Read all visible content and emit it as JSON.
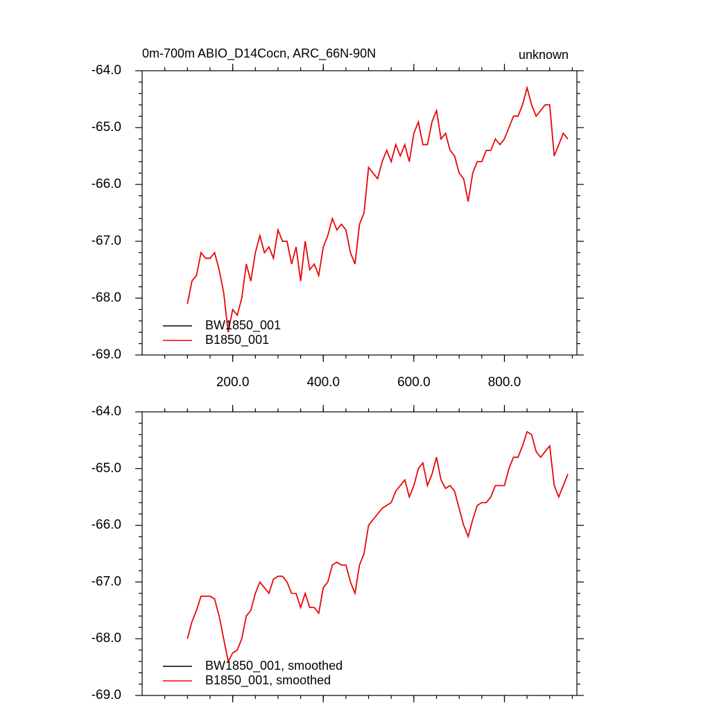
{
  "chart_data": [
    {
      "type": "line",
      "title": "0m-700m ABIO_D14Cocn, ARC_66N-90N",
      "right_title": "unknown",
      "x": [
        100,
        110,
        120,
        130,
        140,
        150,
        160,
        170,
        180,
        190,
        200,
        210,
        220,
        230,
        240,
        250,
        260,
        270,
        280,
        290,
        300,
        310,
        320,
        330,
        340,
        350,
        360,
        370,
        380,
        390,
        400,
        410,
        420,
        430,
        440,
        450,
        460,
        470,
        480,
        490,
        500,
        510,
        520,
        530,
        540,
        550,
        560,
        570,
        580,
        590,
        600,
        610,
        620,
        630,
        640,
        650,
        660,
        670,
        680,
        690,
        700,
        710,
        720,
        730,
        740,
        750,
        760,
        770,
        780,
        790,
        800,
        810,
        820,
        830,
        840,
        850,
        860,
        870,
        880,
        890,
        900,
        910,
        920,
        930,
        940
      ],
      "series": [
        {
          "name": "BW1850_001",
          "color": "#000000",
          "values": [
            -68.1,
            -67.7,
            -67.6,
            -67.2,
            -67.3,
            -67.3,
            -67.2,
            -67.5,
            -67.9,
            -68.6,
            -68.2,
            -68.3,
            -68.0,
            -67.4,
            -67.7,
            -67.2,
            -66.9,
            -67.2,
            -67.1,
            -67.3,
            -66.8,
            -67.0,
            -67.0,
            -67.4,
            -67.1,
            -67.7,
            -67.0,
            -67.5,
            -67.4,
            -67.6,
            -67.1,
            -66.9,
            -66.6,
            -66.8,
            -66.7,
            -66.8,
            -67.2,
            -67.4,
            -66.7,
            -66.5,
            -65.7,
            -65.8,
            -65.9,
            -65.6,
            -65.4,
            -65.6,
            -65.3,
            -65.5,
            -65.3,
            -65.6,
            -65.1,
            -64.9,
            -65.3,
            -65.3,
            -64.9,
            -64.7,
            -65.2,
            -65.1,
            -65.4,
            -65.5,
            -65.8,
            -65.9,
            -66.3,
            -65.8,
            -65.6,
            -65.6,
            -65.4,
            -65.4,
            -65.2,
            -65.3,
            -65.2,
            -65.0,
            -64.8,
            -64.8,
            -64.6,
            -64.3,
            -64.6,
            -64.8,
            -64.7,
            -64.6,
            -64.6,
            -65.5,
            -65.3,
            -65.1,
            -65.2
          ]
        },
        {
          "name": "B1850_001",
          "color": "#ff0000",
          "values": [
            -68.1,
            -67.7,
            -67.6,
            -67.2,
            -67.3,
            -67.3,
            -67.2,
            -67.5,
            -67.9,
            -68.6,
            -68.2,
            -68.3,
            -68.0,
            -67.4,
            -67.7,
            -67.2,
            -66.9,
            -67.2,
            -67.1,
            -67.3,
            -66.8,
            -67.0,
            -67.0,
            -67.4,
            -67.1,
            -67.7,
            -67.0,
            -67.5,
            -67.4,
            -67.6,
            -67.1,
            -66.9,
            -66.6,
            -66.8,
            -66.7,
            -66.8,
            -67.2,
            -67.4,
            -66.7,
            -66.5,
            -65.7,
            -65.8,
            -65.9,
            -65.6,
            -65.4,
            -65.6,
            -65.3,
            -65.5,
            -65.3,
            -65.6,
            -65.1,
            -64.9,
            -65.3,
            -65.3,
            -64.9,
            -64.7,
            -65.2,
            -65.1,
            -65.4,
            -65.5,
            -65.8,
            -65.9,
            -66.3,
            -65.8,
            -65.6,
            -65.6,
            -65.4,
            -65.4,
            -65.2,
            -65.3,
            -65.2,
            -65.0,
            -64.8,
            -64.8,
            -64.6,
            -64.3,
            -64.6,
            -64.8,
            -64.7,
            -64.6,
            -64.6,
            -65.5,
            -65.3,
            -65.1,
            -65.2
          ]
        }
      ],
      "xlim": [
        0,
        960
      ],
      "xticks": [
        {
          "value": 200,
          "label": "200.0"
        },
        {
          "value": 400,
          "label": "400.0"
        },
        {
          "value": 600,
          "label": "600.0"
        },
        {
          "value": 800,
          "label": "800.0"
        }
      ],
      "ylim": [
        -69,
        -64
      ],
      "yticks": [
        {
          "value": -64,
          "label": "-64.0"
        },
        {
          "value": -65,
          "label": "-65.0"
        },
        {
          "value": -66,
          "label": "-66.0"
        },
        {
          "value": -67,
          "label": "-67.0"
        },
        {
          "value": -68,
          "label": "-68.0"
        },
        {
          "value": -69,
          "label": "-69.0"
        }
      ],
      "legend": "lower left"
    },
    {
      "type": "line",
      "x": [
        100,
        110,
        120,
        130,
        140,
        150,
        160,
        170,
        180,
        190,
        200,
        210,
        220,
        230,
        240,
        250,
        260,
        270,
        280,
        290,
        300,
        310,
        320,
        330,
        340,
        350,
        360,
        370,
        380,
        390,
        400,
        410,
        420,
        430,
        440,
        450,
        460,
        470,
        480,
        490,
        500,
        510,
        520,
        530,
        540,
        550,
        560,
        570,
        580,
        590,
        600,
        610,
        620,
        630,
        640,
        650,
        660,
        670,
        680,
        690,
        700,
        710,
        720,
        730,
        740,
        750,
        760,
        770,
        780,
        790,
        800,
        810,
        820,
        830,
        840,
        850,
        860,
        870,
        880,
        890,
        900,
        910,
        920,
        930,
        940
      ],
      "series": [
        {
          "name": "BW1850_001, smoothed",
          "color": "#000000",
          "values": [
            -68.0,
            -67.7,
            -67.5,
            -67.25,
            -67.25,
            -67.25,
            -67.3,
            -67.6,
            -68.0,
            -68.4,
            -68.25,
            -68.2,
            -68.0,
            -67.6,
            -67.5,
            -67.2,
            -67.0,
            -67.1,
            -67.2,
            -66.95,
            -66.9,
            -66.9,
            -67.0,
            -67.2,
            -67.2,
            -67.45,
            -67.2,
            -67.45,
            -67.45,
            -67.55,
            -67.1,
            -67.0,
            -66.7,
            -66.65,
            -66.7,
            -66.7,
            -67.0,
            -67.2,
            -66.7,
            -66.5,
            -66.0,
            -65.9,
            -65.8,
            -65.7,
            -65.65,
            -65.6,
            -65.4,
            -65.3,
            -65.2,
            -65.5,
            -65.3,
            -65.0,
            -64.9,
            -65.3,
            -65.1,
            -64.8,
            -65.2,
            -65.35,
            -65.3,
            -65.4,
            -65.7,
            -66.0,
            -66.2,
            -65.9,
            -65.65,
            -65.6,
            -65.6,
            -65.5,
            -65.3,
            -65.3,
            -65.3,
            -65.0,
            -64.8,
            -64.8,
            -64.6,
            -64.35,
            -64.4,
            -64.7,
            -64.8,
            -64.7,
            -64.6,
            -65.3,
            -65.5,
            -65.3,
            -65.1
          ]
        },
        {
          "name": "B1850_001, smoothed",
          "color": "#ff0000",
          "values": [
            -68.0,
            -67.7,
            -67.5,
            -67.25,
            -67.25,
            -67.25,
            -67.3,
            -67.6,
            -68.0,
            -68.4,
            -68.25,
            -68.2,
            -68.0,
            -67.6,
            -67.5,
            -67.2,
            -67.0,
            -67.1,
            -67.2,
            -66.95,
            -66.9,
            -66.9,
            -67.0,
            -67.2,
            -67.2,
            -67.45,
            -67.2,
            -67.45,
            -67.45,
            -67.55,
            -67.1,
            -67.0,
            -66.7,
            -66.65,
            -66.7,
            -66.7,
            -67.0,
            -67.2,
            -66.7,
            -66.5,
            -66.0,
            -65.9,
            -65.8,
            -65.7,
            -65.65,
            -65.6,
            -65.4,
            -65.3,
            -65.2,
            -65.5,
            -65.3,
            -65.0,
            -64.9,
            -65.3,
            -65.1,
            -64.8,
            -65.2,
            -65.35,
            -65.3,
            -65.4,
            -65.7,
            -66.0,
            -66.2,
            -65.9,
            -65.65,
            -65.6,
            -65.6,
            -65.5,
            -65.3,
            -65.3,
            -65.3,
            -65.0,
            -64.8,
            -64.8,
            -64.6,
            -64.35,
            -64.4,
            -64.7,
            -64.8,
            -64.7,
            -64.6,
            -65.3,
            -65.5,
            -65.3,
            -65.1
          ]
        }
      ],
      "xlim": [
        0,
        960
      ],
      "xticks": [
        200,
        400,
        600,
        800
      ],
      "ylim": [
        -69,
        -64
      ],
      "yticks": [
        {
          "value": -64,
          "label": "-64.0"
        },
        {
          "value": -65,
          "label": "-65.0"
        },
        {
          "value": -66,
          "label": "-66.0"
        },
        {
          "value": -67,
          "label": "-67.0"
        },
        {
          "value": -68,
          "label": "-68.0"
        },
        {
          "value": -69,
          "label": "-69.0"
        }
      ],
      "legend": "lower left"
    }
  ]
}
